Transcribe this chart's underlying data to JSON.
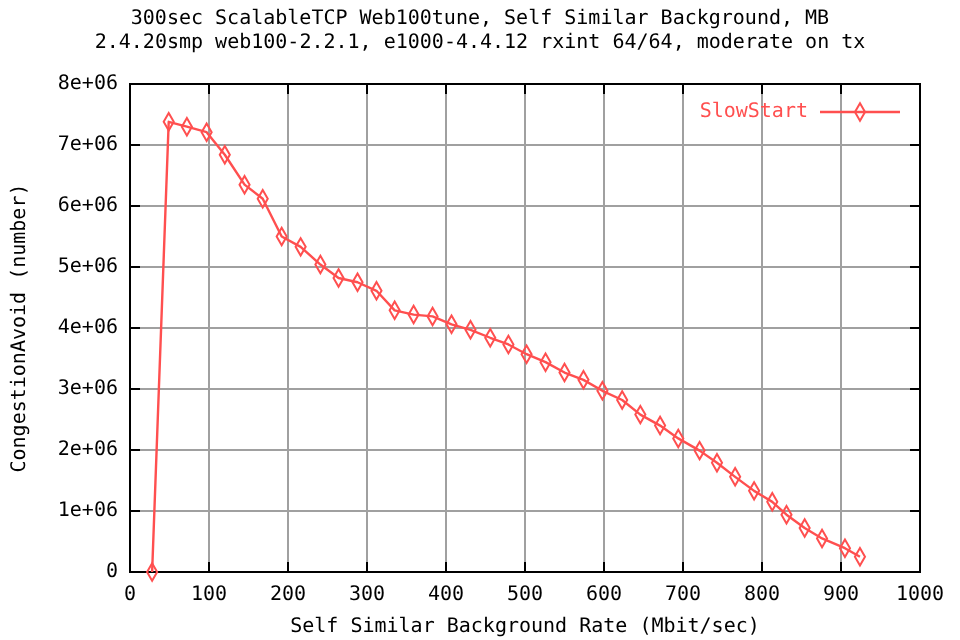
{
  "chart_data": {
    "type": "line",
    "title": "300sec  ScalableTCP  Web100tune, Self Similar Background, MB",
    "subtitle": "2.4.20smp web100-2.2.1, e1000-4.4.12 rxint 64/64, moderate on tx",
    "xlabel": "Self Similar Background Rate (Mbit/sec)",
    "ylabel": "CongestionAvoid (number)",
    "xlim": [
      0,
      1000
    ],
    "xticks": [
      0,
      100,
      200,
      300,
      400,
      500,
      600,
      700,
      800,
      900,
      1000
    ],
    "ylim": [
      0,
      8000000
    ],
    "yticks": [
      {
        "value": 0,
        "label": "0"
      },
      {
        "value": 1000000,
        "label": "1e+06"
      },
      {
        "value": 2000000,
        "label": "2e+06"
      },
      {
        "value": 3000000,
        "label": "3e+06"
      },
      {
        "value": 4000000,
        "label": "4e+06"
      },
      {
        "value": 5000000,
        "label": "5e+06"
      },
      {
        "value": 6000000,
        "label": "6e+06"
      },
      {
        "value": 7000000,
        "label": "7e+06"
      },
      {
        "value": 8000000,
        "label": "8e+06"
      }
    ],
    "grid": true,
    "legend": "top right",
    "marker": "diamond",
    "line_style": "solid",
    "series": [
      {
        "name": "SlowStart",
        "color": "#ff4f4f",
        "x": [
          28,
          49,
          72,
          97,
          120,
          145,
          168,
          192,
          216,
          241,
          264,
          288,
          312,
          335,
          359,
          383,
          407,
          431,
          456,
          479,
          502,
          526,
          550,
          574,
          598,
          623,
          646,
          671,
          694,
          721,
          743,
          766,
          790,
          813,
          831,
          854,
          876,
          905,
          924
        ],
        "values": [
          0,
          7380000,
          7300000,
          7210000,
          6840000,
          6350000,
          6120000,
          5500000,
          5330000,
          5040000,
          4820000,
          4750000,
          4610000,
          4290000,
          4220000,
          4190000,
          4060000,
          3970000,
          3840000,
          3730000,
          3570000,
          3440000,
          3270000,
          3150000,
          2970000,
          2820000,
          2580000,
          2400000,
          2190000,
          1990000,
          1790000,
          1560000,
          1330000,
          1150000,
          940000,
          720000,
          550000,
          390000,
          250000
        ]
      }
    ]
  }
}
